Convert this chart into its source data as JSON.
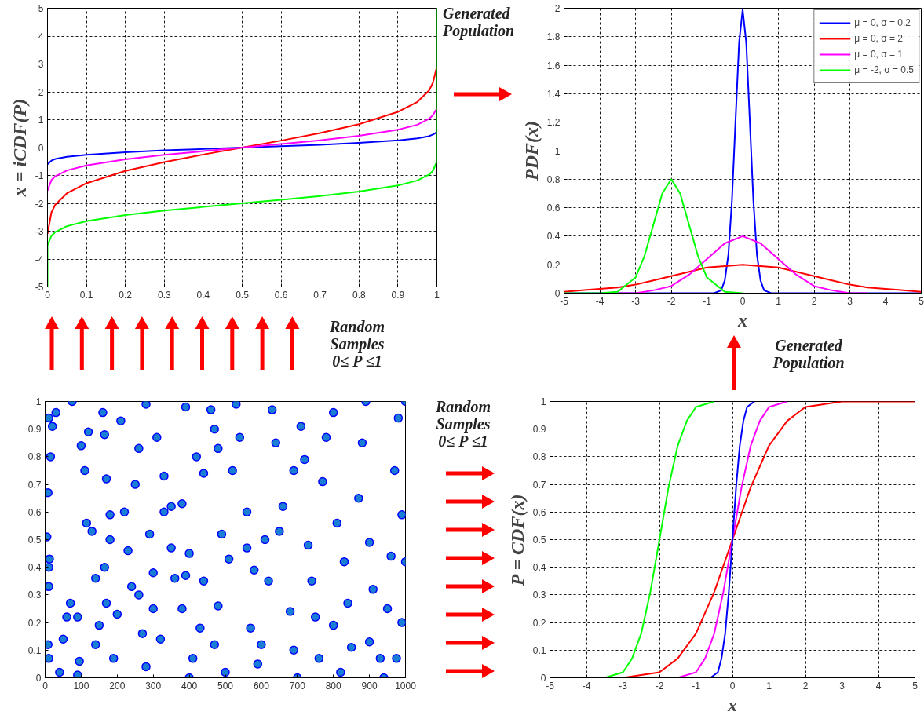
{
  "chart_data": [
    {
      "type": "line",
      "ylabel": "x = iCDF(P)",
      "xlim": [
        0,
        1
      ],
      "ylim": [
        -5,
        5
      ],
      "xticks": [
        0,
        0.1,
        0.2,
        0.3,
        0.4,
        0.5,
        0.6,
        0.7,
        0.8,
        0.9,
        1
      ],
      "yticks": [
        -5,
        -4,
        -3,
        -2,
        -1,
        0,
        1,
        2,
        3,
        4,
        5
      ],
      "grid": true,
      "annotations": [
        "Random Samples 0≤ P ≤1"
      ],
      "series": [
        {
          "color": "#0000ff",
          "x": [
            0,
            0.01,
            0.02,
            0.05,
            0.1,
            0.2,
            0.3,
            0.4,
            0.5,
            0.6,
            0.7,
            0.8,
            0.9,
            0.95,
            0.98,
            0.99,
            1
          ],
          "values": [
            -0.6,
            -0.47,
            -0.41,
            -0.33,
            -0.26,
            -0.17,
            -0.1,
            -0.05,
            0,
            0.05,
            0.1,
            0.17,
            0.26,
            0.33,
            0.41,
            0.47,
            0.55
          ]
        },
        {
          "color": "#ff0000",
          "x": [
            0,
            0.01,
            0.02,
            0.05,
            0.1,
            0.2,
            0.3,
            0.4,
            0.5,
            0.6,
            0.7,
            0.8,
            0.9,
            0.95,
            0.98,
            0.99,
            1
          ],
          "values": [
            -3.1,
            -2.33,
            -2.05,
            -1.64,
            -1.28,
            -0.84,
            -0.52,
            -0.25,
            0,
            0.25,
            0.52,
            0.84,
            1.28,
            1.64,
            2.05,
            2.33,
            2.9
          ]
        },
        {
          "color": "#ff00ff",
          "x": [
            0,
            0.01,
            0.02,
            0.05,
            0.1,
            0.2,
            0.3,
            0.4,
            0.5,
            0.6,
            0.7,
            0.8,
            0.9,
            0.95,
            0.98,
            0.99,
            1
          ],
          "values": [
            -1.55,
            -1.17,
            -1.03,
            -0.82,
            -0.64,
            -0.42,
            -0.26,
            -0.13,
            0,
            0.13,
            0.26,
            0.42,
            0.64,
            0.82,
            1.03,
            1.17,
            1.4
          ]
        },
        {
          "color": "#00ff00",
          "x": [
            0,
            0,
            0.01,
            0.02,
            0.05,
            0.1,
            0.2,
            0.3,
            0.4,
            0.5,
            0.6,
            0.7,
            0.8,
            0.9,
            0.95,
            0.98,
            0.99,
            1,
            1
          ],
          "values": [
            -5,
            -3.5,
            -3.17,
            -3.03,
            -2.82,
            -2.64,
            -2.42,
            -2.26,
            -2.13,
            -2,
            -1.87,
            -1.74,
            -1.58,
            -1.36,
            -1.18,
            -0.97,
            -0.83,
            -0.5,
            5
          ]
        }
      ]
    },
    {
      "type": "line",
      "xlabel": "x",
      "ylabel": "PDF(x)",
      "xlim": [
        -5,
        5
      ],
      "ylim": [
        0,
        2
      ],
      "xticks": [
        -5,
        -4,
        -3,
        -2,
        -1,
        0,
        1,
        2,
        3,
        4,
        5
      ],
      "yticks": [
        0,
        0.2,
        0.4,
        0.6,
        0.8,
        1,
        1.2,
        1.4,
        1.6,
        1.8,
        2
      ],
      "grid": true,
      "legend": "top right",
      "annotations": [
        "Generated Population",
        "Generated Population"
      ],
      "series": [
        {
          "name": "μ = 0, σ = 0.2",
          "color": "#0000ff",
          "x": [
            -5,
            -0.8,
            -0.6,
            -0.5,
            -0.4,
            -0.3,
            -0.2,
            -0.1,
            0,
            0.1,
            0.2,
            0.3,
            0.4,
            0.5,
            0.6,
            0.8,
            5
          ],
          "values": [
            0,
            0,
            0.02,
            0.09,
            0.27,
            0.65,
            1.21,
            1.76,
            1.99,
            1.76,
            1.21,
            0.65,
            0.27,
            0.09,
            0.02,
            0,
            0
          ]
        },
        {
          "name": "μ = 0, σ = 2",
          "color": "#ff0000",
          "x": [
            -5,
            -4.5,
            -4,
            -3.5,
            -3,
            -2.5,
            -2,
            -1.5,
            -1,
            -0.5,
            0,
            0.5,
            1,
            1.5,
            2,
            2.5,
            3,
            3.5,
            4,
            4.5,
            5
          ],
          "values": [
            0.01,
            0.02,
            0.03,
            0.04,
            0.06,
            0.09,
            0.12,
            0.15,
            0.18,
            0.19,
            0.2,
            0.19,
            0.18,
            0.15,
            0.12,
            0.09,
            0.06,
            0.04,
            0.03,
            0.02,
            0.01
          ]
        },
        {
          "name": "μ = 0, σ = 1",
          "color": "#ff00ff",
          "x": [
            -3.5,
            -3,
            -2.5,
            -2,
            -1.5,
            -1,
            -0.5,
            0,
            0.5,
            1,
            1.5,
            2,
            2.5,
            3,
            3.5
          ],
          "values": [
            0,
            0,
            0.02,
            0.05,
            0.13,
            0.24,
            0.35,
            0.4,
            0.35,
            0.24,
            0.13,
            0.05,
            0.02,
            0,
            0
          ]
        },
        {
          "name": "μ = -2, σ = 0.5",
          "color": "#00ff00",
          "x": [
            -5,
            -4,
            -3.5,
            -3,
            -2.75,
            -2.5,
            -2.25,
            -2,
            -1.75,
            -1.5,
            -1.25,
            -1,
            -0.5,
            0
          ],
          "values": [
            0,
            0,
            0.01,
            0.11,
            0.26,
            0.48,
            0.7,
            0.8,
            0.7,
            0.48,
            0.26,
            0.11,
            0.01,
            0
          ]
        }
      ]
    },
    {
      "type": "scatter",
      "marker": "circle",
      "color": "#1a7fd4",
      "xlim": [
        0,
        1000
      ],
      "ylim": [
        0,
        1
      ],
      "xticks": [
        0,
        100,
        200,
        300,
        400,
        500,
        600,
        700,
        800,
        900,
        1000
      ],
      "yticks": [
        0,
        0.1,
        0.2,
        0.3,
        0.4,
        0.5,
        0.6,
        0.7,
        0.8,
        0.9,
        1
      ],
      "annotations": [
        "Random Samples 0≤ P ≤1"
      ],
      "x": [
        5,
        10,
        20,
        30,
        15,
        8,
        12,
        10,
        10,
        8,
        10,
        40,
        50,
        60,
        70,
        90,
        95,
        90,
        75,
        100,
        110,
        115,
        130,
        140,
        150,
        140,
        120,
        160,
        165,
        170,
        180,
        180,
        165,
        170,
        190,
        200,
        210,
        220,
        230,
        240,
        260,
        270,
        280,
        280,
        260,
        250,
        290,
        300,
        300,
        320,
        310,
        330,
        330,
        350,
        350,
        360,
        380,
        400,
        410,
        400,
        390,
        380,
        390,
        420,
        440,
        430,
        440,
        460,
        470,
        480,
        490,
        480,
        470,
        500,
        510,
        520,
        530,
        540,
        560,
        560,
        580,
        570,
        590,
        600,
        610,
        620,
        630,
        640,
        650,
        660,
        680,
        690,
        700,
        690,
        710,
        720,
        730,
        740,
        750,
        760,
        770,
        780,
        800,
        810,
        830,
        840,
        800,
        820,
        850,
        870,
        880,
        890,
        900,
        910,
        900,
        930,
        940,
        950,
        960,
        970,
        980,
        990,
        1000,
        1000,
        990,
        975
      ],
      "values": [
        0.51,
        0.94,
        0.91,
        0.96,
        0.8,
        0.67,
        0.43,
        0.4,
        0.33,
        0.12,
        0.07,
        0.02,
        0.14,
        0.22,
        0.27,
        0.22,
        0.06,
        0.01,
        1.0,
        0.84,
        0.75,
        0.56,
        0.53,
        0.36,
        0.19,
        0.12,
        0.89,
        0.96,
        0.88,
        0.72,
        0.59,
        0.5,
        0.4,
        0.27,
        0.07,
        0.23,
        0.93,
        0.6,
        0.46,
        0.33,
        0.3,
        0.16,
        0.04,
        0.99,
        0.83,
        0.7,
        0.52,
        0.38,
        0.25,
        0.14,
        0.87,
        0.73,
        0.6,
        0.62,
        0.47,
        0.36,
        0.25,
        0.0,
        0.07,
        0.45,
        0.37,
        0.63,
        0.98,
        0.8,
        0.74,
        0.18,
        0.35,
        0.97,
        0.9,
        0.83,
        0.52,
        0.26,
        0.12,
        0.02,
        0.43,
        0.75,
        0.99,
        0.87,
        0.6,
        0.47,
        0.39,
        0.18,
        0.05,
        0.12,
        0.5,
        0.35,
        0.97,
        0.85,
        0.53,
        0.62,
        0.24,
        0.1,
        0.0,
        0.75,
        0.91,
        0.79,
        0.48,
        0.35,
        0.22,
        0.07,
        0.71,
        0.87,
        0.96,
        0.56,
        0.42,
        0.27,
        0.19,
        0.02,
        0.11,
        0.65,
        0.85,
        1.0,
        0.49,
        0.32,
        0.13,
        0.07,
        0.0,
        0.25,
        0.44,
        0.75,
        0.94,
        0.59,
        1.0,
        0.42,
        0.2,
        0.07
      ]
    },
    {
      "type": "line",
      "xlabel": "x",
      "ylabel": "P = CDF(x)",
      "xlim": [
        -5,
        5
      ],
      "ylim": [
        0,
        1
      ],
      "xticks": [
        -5,
        -4,
        -3,
        -2,
        -1,
        0,
        1,
        2,
        3,
        4,
        5
      ],
      "yticks": [
        0,
        0.1,
        0.2,
        0.3,
        0.4,
        0.5,
        0.6,
        0.7,
        0.8,
        0.9,
        1
      ],
      "grid": true,
      "series": [
        {
          "color": "#ff0000",
          "x": [
            -5,
            -3,
            -2.5,
            -2,
            -1.5,
            -1,
            -0.5,
            0,
            0.5,
            1,
            1.5,
            2,
            2.5,
            3,
            5
          ],
          "values": [
            0,
            0,
            0.01,
            0.02,
            0.07,
            0.16,
            0.31,
            0.5,
            0.69,
            0.84,
            0.93,
            0.98,
            0.99,
            1,
            1
          ]
        },
        {
          "color": "#ff00ff",
          "x": [
            -5,
            -1.5,
            -1,
            -0.75,
            -0.5,
            -0.25,
            0,
            0.25,
            0.5,
            0.75,
            1,
            1.5
          ],
          "values": [
            0,
            0,
            0.02,
            0.07,
            0.16,
            0.31,
            0.5,
            0.69,
            0.84,
            0.93,
            0.98,
            1
          ]
        },
        {
          "color": "#0000ff",
          "x": [
            -5,
            -0.6,
            -0.5,
            -0.4,
            -0.3,
            -0.2,
            -0.1,
            0,
            0.1,
            0.2,
            0.3,
            0.4,
            0.5,
            0.6
          ],
          "values": [
            0,
            0,
            0.01,
            0.02,
            0.07,
            0.16,
            0.31,
            0.5,
            0.69,
            0.84,
            0.93,
            0.98,
            0.99,
            1
          ]
        },
        {
          "color": "#00ff00",
          "x": [
            -5,
            -3.5,
            -3,
            -2.75,
            -2.5,
            -2.25,
            -2,
            -1.75,
            -1.5,
            -1.25,
            -1,
            -0.5
          ],
          "values": [
            0,
            0,
            0.02,
            0.07,
            0.16,
            0.31,
            0.5,
            0.69,
            0.84,
            0.93,
            0.98,
            1
          ]
        }
      ]
    }
  ]
}
